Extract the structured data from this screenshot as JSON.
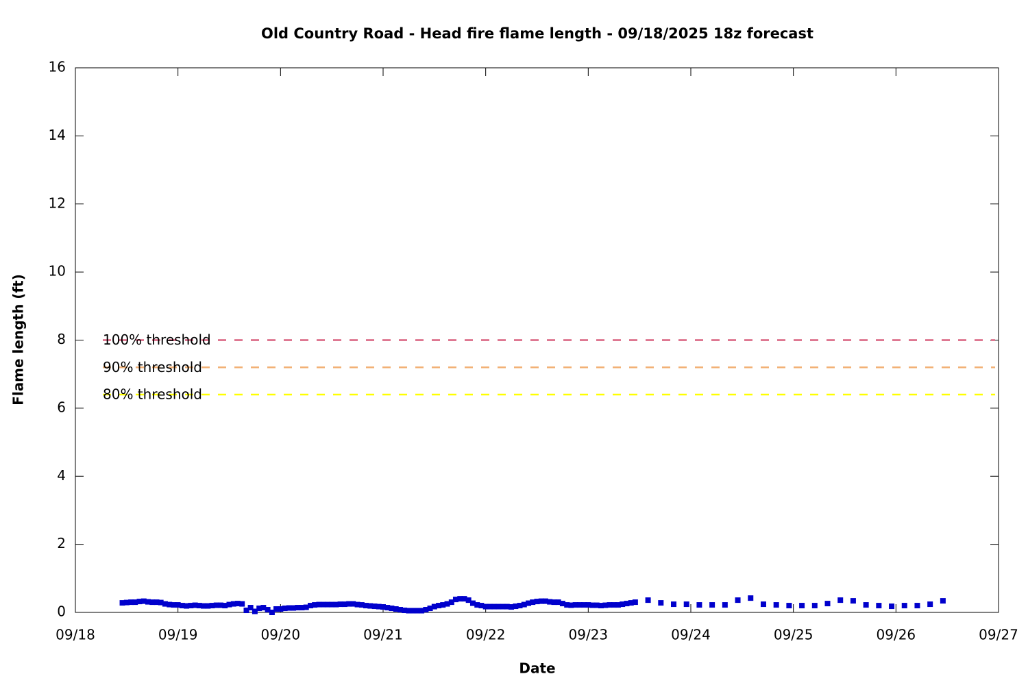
{
  "chart_data": {
    "type": "scatter",
    "title": "Old Country Road - Head fire flame length - 09/18/2025 18z forecast",
    "x_label": "Date",
    "y_label": "Flame length (ft)",
    "color": "#0000cc",
    "x": [
      18.458,
      18.5,
      18.542,
      18.583,
      18.625,
      18.667,
      18.708,
      18.75,
      18.792,
      18.833,
      18.875,
      18.917,
      18.958,
      19.0,
      19.042,
      19.083,
      19.125,
      19.167,
      19.208,
      19.25,
      19.292,
      19.333,
      19.375,
      19.417,
      19.458,
      19.5,
      19.542,
      19.583,
      19.625,
      19.667,
      19.708,
      19.75,
      19.792,
      19.833,
      19.875,
      19.917,
      19.958,
      20.0,
      20.042,
      20.083,
      20.125,
      20.167,
      20.208,
      20.25,
      20.292,
      20.333,
      20.375,
      20.417,
      20.458,
      20.5,
      20.542,
      20.583,
      20.625,
      20.667,
      20.708,
      20.75,
      20.792,
      20.833,
      20.875,
      20.917,
      20.958,
      21.0,
      21.042,
      21.083,
      21.125,
      21.167,
      21.208,
      21.25,
      21.292,
      21.333,
      21.375,
      21.417,
      21.458,
      21.5,
      21.542,
      21.583,
      21.625,
      21.667,
      21.708,
      21.75,
      21.792,
      21.833,
      21.875,
      21.917,
      21.958,
      22.0,
      22.042,
      22.083,
      22.125,
      22.167,
      22.208,
      22.25,
      22.292,
      22.333,
      22.375,
      22.417,
      22.458,
      22.5,
      22.542,
      22.583,
      22.625,
      22.667,
      22.708,
      22.75,
      22.792,
      22.833,
      22.875,
      22.917,
      22.958,
      23.0,
      23.042,
      23.083,
      23.125,
      23.167,
      23.208,
      23.25,
      23.292,
      23.333,
      23.375,
      23.417,
      23.458,
      23.583,
      23.708,
      23.833,
      23.958,
      24.083,
      24.208,
      24.333,
      24.458,
      24.583,
      24.708,
      24.833,
      24.958,
      25.083,
      25.208,
      25.333,
      25.458,
      25.583,
      25.708,
      25.833,
      25.958,
      26.083,
      26.208,
      26.333,
      26.458
    ],
    "values": [
      0.28,
      0.29,
      0.3,
      0.3,
      0.32,
      0.33,
      0.31,
      0.3,
      0.3,
      0.29,
      0.25,
      0.23,
      0.22,
      0.22,
      0.2,
      0.19,
      0.2,
      0.21,
      0.2,
      0.19,
      0.19,
      0.2,
      0.21,
      0.21,
      0.2,
      0.23,
      0.25,
      0.26,
      0.25,
      0.06,
      0.14,
      0.03,
      0.12,
      0.14,
      0.08,
      0.0,
      0.1,
      0.1,
      0.12,
      0.13,
      0.13,
      0.14,
      0.14,
      0.15,
      0.2,
      0.22,
      0.23,
      0.23,
      0.23,
      0.23,
      0.23,
      0.24,
      0.24,
      0.25,
      0.25,
      0.23,
      0.22,
      0.2,
      0.19,
      0.18,
      0.17,
      0.16,
      0.14,
      0.12,
      0.1,
      0.08,
      0.06,
      0.05,
      0.05,
      0.05,
      0.05,
      0.08,
      0.12,
      0.17,
      0.2,
      0.22,
      0.25,
      0.3,
      0.38,
      0.4,
      0.4,
      0.36,
      0.27,
      0.22,
      0.2,
      0.17,
      0.17,
      0.17,
      0.17,
      0.17,
      0.17,
      0.16,
      0.18,
      0.2,
      0.23,
      0.27,
      0.3,
      0.32,
      0.33,
      0.33,
      0.31,
      0.3,
      0.3,
      0.26,
      0.22,
      0.21,
      0.22,
      0.22,
      0.22,
      0.22,
      0.21,
      0.21,
      0.2,
      0.21,
      0.22,
      0.22,
      0.22,
      0.24,
      0.26,
      0.28,
      0.3,
      0.36,
      0.28,
      0.24,
      0.24,
      0.22,
      0.22,
      0.22,
      0.36,
      0.42,
      0.24,
      0.22,
      0.2,
      0.2,
      0.2,
      0.26,
      0.36,
      0.34,
      0.22,
      0.2,
      0.18,
      0.2,
      0.2,
      0.24,
      0.34
    ],
    "thresholds": [
      {
        "name": "100% threshold",
        "value": 8,
        "color": "#d9607f"
      },
      {
        "name": "90% threshold",
        "value": 7.2,
        "color": "#f2b176"
      },
      {
        "name": "80% threshold",
        "value": 6.4,
        "color": "#ffff00"
      }
    ],
    "xlim": [
      18,
      27
    ],
    "xticks": [
      {
        "value": 18,
        "label": "09/18"
      },
      {
        "value": 19,
        "label": "09/19"
      },
      {
        "value": 20,
        "label": "09/20"
      },
      {
        "value": 21,
        "label": "09/21"
      },
      {
        "value": 22,
        "label": "09/22"
      },
      {
        "value": 23,
        "label": "09/23"
      },
      {
        "value": 24,
        "label": "09/24"
      },
      {
        "value": 25,
        "label": "09/25"
      },
      {
        "value": 26,
        "label": "09/26"
      },
      {
        "value": 27,
        "label": "09/27"
      }
    ],
    "ylim": [
      0,
      16
    ],
    "yticks": [
      0,
      2,
      4,
      6,
      8,
      10,
      12,
      14,
      16
    ]
  }
}
